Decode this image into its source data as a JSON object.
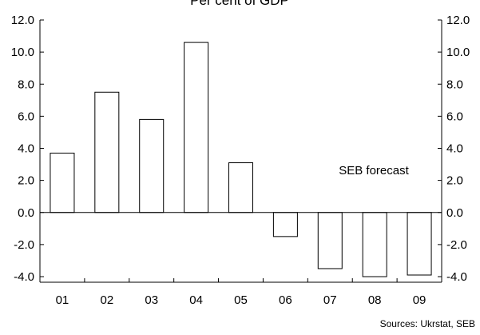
{
  "chart_data": {
    "type": "bar",
    "title": "Per cent of GDP",
    "xlabel": "",
    "ylabel": "",
    "categories": [
      "01",
      "02",
      "03",
      "04",
      "05",
      "06",
      "07",
      "08",
      "09"
    ],
    "values": [
      3.7,
      7.5,
      5.8,
      10.6,
      3.1,
      -1.5,
      -3.5,
      -4.0,
      -3.9
    ],
    "ylim": [
      -4.0,
      12.0
    ],
    "yticks": [
      "12.0",
      "10.0",
      "8.0",
      "6.0",
      "4.0",
      "2.0",
      "0.0",
      "-2.0",
      "-4.0"
    ],
    "right_axis": true,
    "grid": false,
    "bar_fill": "#ffffff",
    "bar_stroke": "#000000",
    "annotation": "SEB forecast",
    "source": "Sources: Ukrstat, SEB"
  }
}
